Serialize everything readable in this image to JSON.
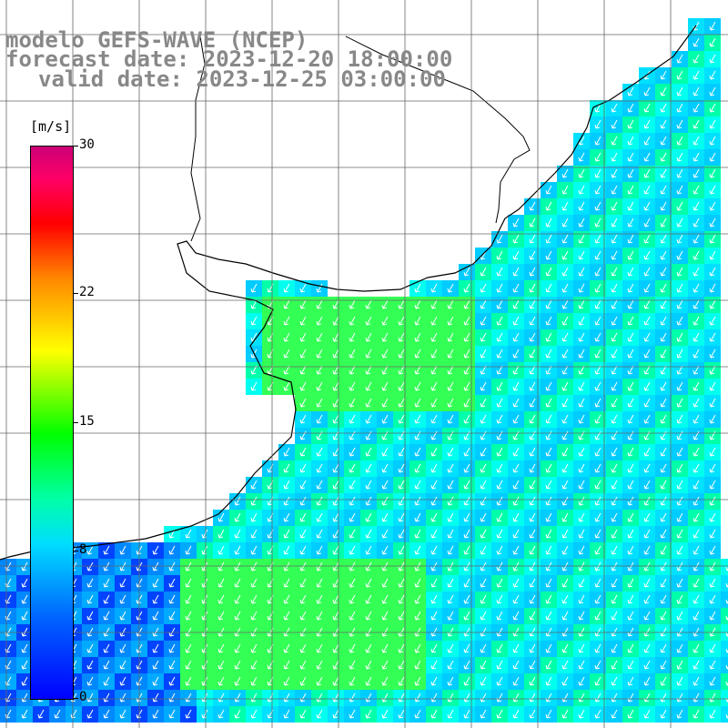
{
  "title": {
    "line1": "modelo GEFS-WAVE (NCEP)",
    "line2": "forecast date: 2023-12-20 18:00:00",
    "line3": "valid date: 2023-12-25 03:00:00"
  },
  "colorbar": {
    "unit": "[m/s]",
    "ticks": [
      "30",
      "22",
      "15",
      "8",
      "0"
    ],
    "tick_values": [
      30,
      22,
      15,
      8,
      0
    ],
    "min": 0,
    "max": 30
  },
  "map": {
    "variable": "wind speed and direction",
    "region": "South Atlantic / Rio de la Plata",
    "colors": {
      "ocean_low": "#0000ff",
      "ocean_mid": "#00ffff",
      "ocean_high": "#00ff00",
      "land": "#ffffff",
      "coast": "#000000",
      "grid": "#666666",
      "arrow": "#ffffff"
    }
  }
}
